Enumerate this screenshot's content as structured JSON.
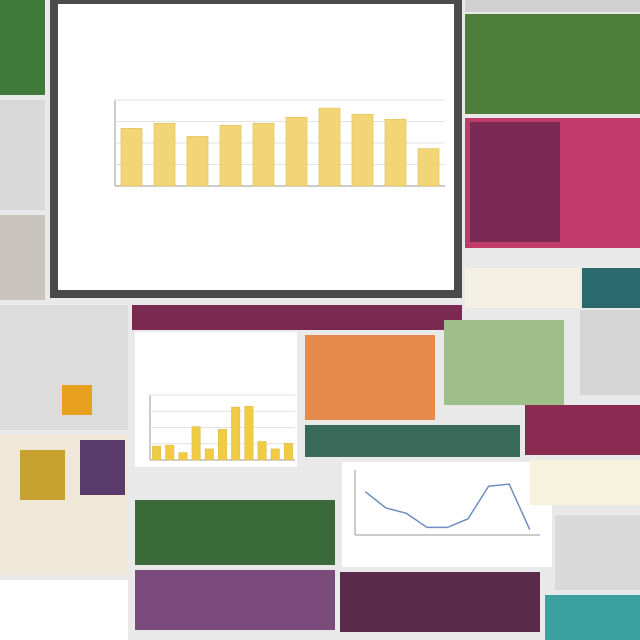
{
  "chart_data": [
    {
      "type": "bar",
      "color": "#f2d675",
      "ylim": [
        0,
        85
      ],
      "values": [
        57,
        62,
        49,
        60,
        62,
        68,
        77,
        71,
        66,
        37
      ],
      "grid": true
    },
    {
      "type": "bar",
      "color": "#f0cc45",
      "ylim": [
        0,
        70
      ],
      "values": [
        15,
        16,
        8,
        36,
        12,
        33,
        57,
        58,
        20,
        12,
        18
      ],
      "grid": true
    },
    {
      "type": "line",
      "color": "#6f8fbf",
      "ylim": [
        0,
        60
      ],
      "values": [
        40,
        25,
        20,
        7,
        7,
        15,
        45,
        47,
        5
      ],
      "grid": false
    }
  ]
}
